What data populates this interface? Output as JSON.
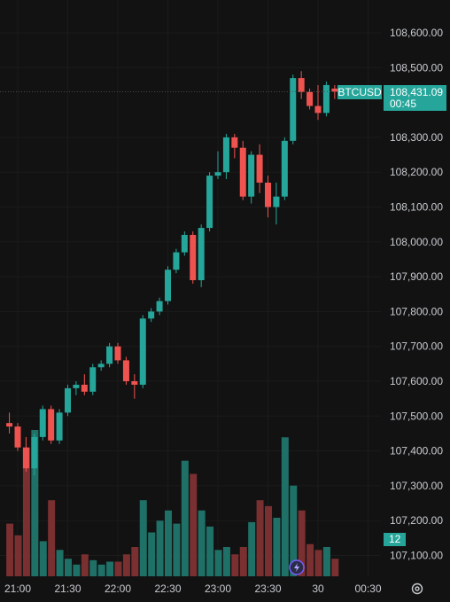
{
  "chart_data": {
    "type": "candlestick",
    "symbol": "BTCUSD",
    "last_price": "108,431.09",
    "countdown": "00:45",
    "volume_label": "12",
    "colors": {
      "up": "#26a69a",
      "down": "#ef5350",
      "up_vol": "#1f7066",
      "down_vol": "#7a2f30",
      "background": "#121212"
    },
    "y_axis": {
      "ticks": [
        "108,600.00",
        "108,500.00",
        "108,300.00",
        "108,200.00",
        "108,100.00",
        "108,000.00",
        "107,900.00",
        "107,800.00",
        "107,700.00",
        "107,600.00",
        "107,500.00",
        "107,400.00",
        "107,300.00",
        "107,200.00",
        "107,100.00"
      ],
      "tick_values": [
        108600,
        108500,
        108300,
        108200,
        108100,
        108000,
        107900,
        107800,
        107700,
        107600,
        107500,
        107400,
        107300,
        107200,
        107100
      ],
      "range": [
        107050,
        108680
      ]
    },
    "x_axis": {
      "ticks": [
        "21:00",
        "21:30",
        "22:00",
        "22:30",
        "23:00",
        "23:30",
        "30",
        "00:30"
      ],
      "tick_times": [
        "21:00",
        "21:30",
        "22:00",
        "22:30",
        "23:00",
        "23:30",
        "00:00",
        "00:30"
      ]
    },
    "interval_minutes": 5,
    "candles": [
      {
        "t": "20:55",
        "o": 107480,
        "h": 107510,
        "l": 107450,
        "c": 107470,
        "v": 36
      },
      {
        "t": "21:00",
        "o": 107470,
        "h": 107480,
        "l": 107400,
        "c": 107410,
        "v": 28
      },
      {
        "t": "21:05",
        "o": 107410,
        "h": 107440,
        "l": 107340,
        "c": 107350,
        "v": 88
      },
      {
        "t": "21:10",
        "o": 107350,
        "h": 107450,
        "l": 107330,
        "c": 107440,
        "v": 100
      },
      {
        "t": "21:15",
        "o": 107440,
        "h": 107530,
        "l": 107430,
        "c": 107520,
        "v": 24
      },
      {
        "t": "21:20",
        "o": 107520,
        "h": 107530,
        "l": 107420,
        "c": 107430,
        "v": 52
      },
      {
        "t": "21:25",
        "o": 107430,
        "h": 107520,
        "l": 107420,
        "c": 107510,
        "v": 18
      },
      {
        "t": "21:30",
        "o": 107510,
        "h": 107590,
        "l": 107500,
        "c": 107580,
        "v": 12
      },
      {
        "t": "21:35",
        "o": 107580,
        "h": 107600,
        "l": 107560,
        "c": 107590,
        "v": 8
      },
      {
        "t": "21:40",
        "o": 107590,
        "h": 107620,
        "l": 107560,
        "c": 107570,
        "v": 15
      },
      {
        "t": "21:45",
        "o": 107570,
        "h": 107650,
        "l": 107560,
        "c": 107640,
        "v": 11
      },
      {
        "t": "21:50",
        "o": 107640,
        "h": 107660,
        "l": 107630,
        "c": 107650,
        "v": 8
      },
      {
        "t": "21:55",
        "o": 107650,
        "h": 107710,
        "l": 107640,
        "c": 107700,
        "v": 10
      },
      {
        "t": "22:00",
        "o": 107700,
        "h": 107710,
        "l": 107650,
        "c": 107660,
        "v": 10
      },
      {
        "t": "22:05",
        "o": 107660,
        "h": 107670,
        "l": 107590,
        "c": 107600,
        "v": 15
      },
      {
        "t": "22:10",
        "o": 107600,
        "h": 107620,
        "l": 107550,
        "c": 107590,
        "v": 20
      },
      {
        "t": "22:15",
        "o": 107590,
        "h": 107790,
        "l": 107580,
        "c": 107780,
        "v": 52
      },
      {
        "t": "22:20",
        "o": 107780,
        "h": 107810,
        "l": 107770,
        "c": 107800,
        "v": 30
      },
      {
        "t": "22:25",
        "o": 107800,
        "h": 107840,
        "l": 107790,
        "c": 107830,
        "v": 38
      },
      {
        "t": "22:30",
        "o": 107830,
        "h": 107930,
        "l": 107820,
        "c": 107920,
        "v": 45
      },
      {
        "t": "22:35",
        "o": 107920,
        "h": 107980,
        "l": 107910,
        "c": 107970,
        "v": 36
      },
      {
        "t": "22:40",
        "o": 107970,
        "h": 108030,
        "l": 107960,
        "c": 108020,
        "v": 79
      },
      {
        "t": "22:45",
        "o": 108020,
        "h": 108030,
        "l": 107880,
        "c": 107890,
        "v": 70
      },
      {
        "t": "22:50",
        "o": 107890,
        "h": 108050,
        "l": 107870,
        "c": 108040,
        "v": 45
      },
      {
        "t": "22:55",
        "o": 108040,
        "h": 108200,
        "l": 108030,
        "c": 108190,
        "v": 34
      },
      {
        "t": "23:00",
        "o": 108190,
        "h": 108260,
        "l": 108180,
        "c": 108200,
        "v": 18
      },
      {
        "t": "23:05",
        "o": 108200,
        "h": 108310,
        "l": 108180,
        "c": 108300,
        "v": 20
      },
      {
        "t": "23:10",
        "o": 108300,
        "h": 108310,
        "l": 108240,
        "c": 108270,
        "v": 15
      },
      {
        "t": "23:15",
        "o": 108270,
        "h": 108290,
        "l": 108120,
        "c": 108130,
        "v": 20
      },
      {
        "t": "23:20",
        "o": 108130,
        "h": 108260,
        "l": 108110,
        "c": 108250,
        "v": 37
      },
      {
        "t": "23:25",
        "o": 108250,
        "h": 108280,
        "l": 108140,
        "c": 108170,
        "v": 52
      },
      {
        "t": "23:30",
        "o": 108170,
        "h": 108190,
        "l": 108070,
        "c": 108100,
        "v": 48
      },
      {
        "t": "23:35",
        "o": 108100,
        "h": 108170,
        "l": 108050,
        "c": 108130,
        "v": 40
      },
      {
        "t": "23:40",
        "o": 108130,
        "h": 108300,
        "l": 108120,
        "c": 108290,
        "v": 95
      },
      {
        "t": "23:45",
        "o": 108290,
        "h": 108480,
        "l": 108280,
        "c": 108470,
        "v": 62
      },
      {
        "t": "23:50",
        "o": 108470,
        "h": 108490,
        "l": 108410,
        "c": 108430,
        "v": 45
      },
      {
        "t": "23:55",
        "o": 108430,
        "h": 108440,
        "l": 108380,
        "c": 108390,
        "v": 22
      },
      {
        "t": "00:00",
        "o": 108390,
        "h": 108450,
        "l": 108350,
        "c": 108370,
        "v": 18
      },
      {
        "t": "00:05",
        "o": 108370,
        "h": 108460,
        "l": 108360,
        "c": 108450,
        "v": 20
      },
      {
        "t": "00:10",
        "o": 108440,
        "h": 108450,
        "l": 108410,
        "c": 108431,
        "v": 12
      }
    ]
  }
}
